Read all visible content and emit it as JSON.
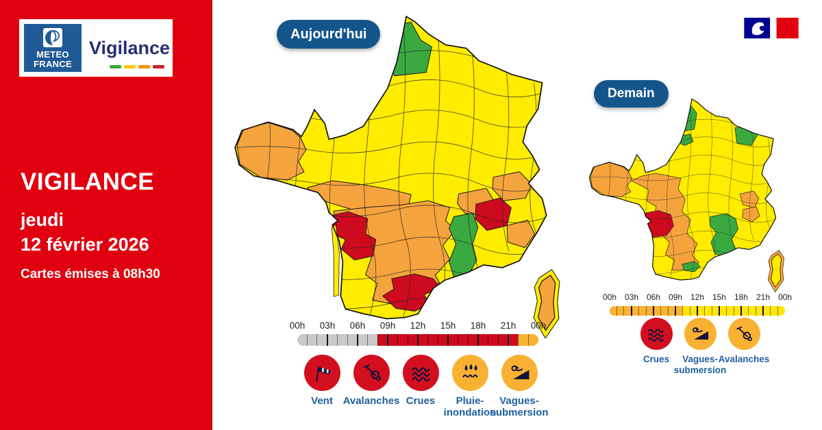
{
  "brand": {
    "org_line1": "METEO",
    "org_line2": "FRANCE",
    "product": "Vigilance"
  },
  "sidebar": {
    "title": "VIGILANCE",
    "weekday": "jeudi",
    "date": "12 février 2026",
    "issued_note": "Cartes émises à 08h30"
  },
  "colors": {
    "sidebar_red": "#E1000F",
    "badge_blue": "#14568C",
    "brand_blue": "#205A96",
    "brand_navy": "#272F6E",
    "label_blue": "#1E5F9E",
    "glyph_navy": "#12123A",
    "flag_blue": "#000091",
    "flag_red": "#E1000F",
    "wordmark_dashes": [
      "#3AAA35",
      "#FFCC00",
      "#F39200",
      "#CC2229"
    ],
    "levels": {
      "green": "#3AA93F",
      "yellow": "#FFEC00",
      "orange": "#F5A33C",
      "red": "#CE0A1E",
      "grey": "#C9C9C9",
      "timeline_yellow": "#FFE60A",
      "timeline_orange": "#F9B233",
      "icon_red": "#D20F1F",
      "icon_orange": "#F8B133"
    }
  },
  "maps": {
    "today": {
      "badge": "Aujourd'hui",
      "timeline": {
        "ticks": [
          "00h",
          "03h",
          "06h",
          "09h",
          "12h",
          "15h",
          "18h",
          "21h",
          "00h"
        ],
        "segments": [
          "grey",
          "grey",
          "grey",
          "grey",
          "grey",
          "grey",
          "grey",
          "grey",
          "red",
          "red",
          "red",
          "red",
          "red",
          "red",
          "red",
          "red",
          "red",
          "red",
          "red",
          "red",
          "red",
          "red",
          "timeline_orange",
          "timeline_orange"
        ]
      },
      "phenomena": [
        {
          "icon": "wind-sock-icon",
          "label": "Vent",
          "level": "icon_red"
        },
        {
          "icon": "avalanche-icon",
          "label": "Avalanches",
          "level": "icon_red"
        },
        {
          "icon": "waves-icon",
          "label": "Crues",
          "level": "icon_red"
        },
        {
          "icon": "rain-flood-icon",
          "label": "Pluie-inondation",
          "level": "icon_orange"
        },
        {
          "icon": "wave-submersion-icon",
          "label": "Vagues-submersion",
          "level": "icon_orange"
        }
      ],
      "zones": {
        "base": "yellow",
        "nord": "green",
        "bretagne": "orange",
        "centre_ouest": "orange",
        "sud_ouest_massif": "orange",
        "prealpes_nord": "orange",
        "savoie_nord": "orange",
        "alpes_sud": "orange",
        "savoie": "red",
        "vallee_rhone": "green",
        "gironde_lot": "red",
        "aude_pyrenees": "red",
        "littoral_atlantique": "yellow",
        "corse": "orange",
        "corse_littoral": "yellow"
      }
    },
    "tomorrow": {
      "badge": "Demain",
      "timeline": {
        "ticks": [
          "00h",
          "03h",
          "06h",
          "09h",
          "12h",
          "15h",
          "18h",
          "21h",
          "00h"
        ],
        "segments": [
          "timeline_orange",
          "timeline_orange",
          "timeline_orange",
          "timeline_orange",
          "timeline_orange",
          "timeline_orange",
          "timeline_orange",
          "timeline_orange",
          "timeline_orange",
          "timeline_orange",
          "timeline_yellow",
          "timeline_yellow",
          "timeline_yellow",
          "timeline_yellow",
          "timeline_yellow",
          "timeline_yellow",
          "timeline_yellow",
          "timeline_yellow",
          "timeline_yellow",
          "timeline_yellow",
          "timeline_yellow",
          "timeline_yellow",
          "timeline_yellow",
          "timeline_yellow"
        ]
      },
      "phenomena": [
        {
          "icon": "waves-icon",
          "label": "Crues",
          "level": "icon_red"
        },
        {
          "icon": "wave-submersion-icon",
          "label": "Vagues-submersion",
          "level": "icon_orange"
        },
        {
          "icon": "avalanche-icon",
          "label": "Avalanches",
          "level": "icon_orange"
        }
      ],
      "zones": {
        "base": "yellow",
        "nord": "green",
        "nord_est": "green",
        "ile_de_france": "green",
        "bretagne": "orange",
        "ouest_sud_ouest": "orange",
        "alpes_nord": "orange",
        "alpes_sud": "orange",
        "gironde_lot": "red",
        "sud_est": "green",
        "ariege": "green",
        "corse": "yellow",
        "corse_littoral": "orange"
      }
    }
  }
}
